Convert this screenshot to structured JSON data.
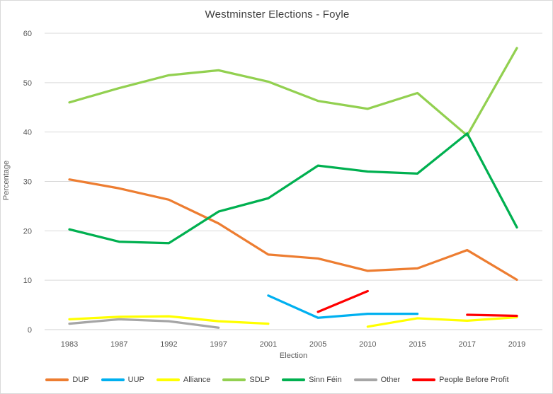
{
  "title": "Westminster Elections - Foyle",
  "axes": {
    "x_title": "Election",
    "y_title": "Percentage",
    "y_ticks": [
      0,
      10,
      20,
      30,
      40,
      50,
      60
    ]
  },
  "chart_data": {
    "type": "line",
    "title": "Westminster Elections - Foyle",
    "xlabel": "Election",
    "ylabel": "Percentage",
    "ylim": [
      0,
      60
    ],
    "y_tick_step": 10,
    "grid": true,
    "legend_position": "bottom",
    "categories": [
      "1983",
      "1987",
      "1992",
      "1997",
      "2001",
      "2005",
      "2010",
      "2015",
      "2017",
      "2019"
    ],
    "series": [
      {
        "name": "DUP",
        "color": "#ED7D31",
        "values": [
          30.4,
          28.6,
          26.3,
          21.5,
          15.2,
          14.4,
          11.9,
          12.4,
          16.1,
          10.1
        ]
      },
      {
        "name": "UUP",
        "color": "#00B0F0",
        "values": [
          null,
          null,
          null,
          null,
          6.9,
          2.4,
          3.2,
          3.2,
          null,
          null
        ]
      },
      {
        "name": "Alliance",
        "color": "#FFFF00",
        "values": [
          2.1,
          2.6,
          2.7,
          1.7,
          1.2,
          null,
          0.6,
          2.3,
          1.8,
          2.5
        ]
      },
      {
        "name": "SDLP",
        "color": "#92D050",
        "values": [
          46.0,
          48.9,
          51.5,
          52.5,
          50.2,
          46.3,
          44.7,
          47.9,
          39.3,
          57.0
        ]
      },
      {
        "name": "Sinn Féin",
        "color": "#00B050",
        "values": [
          20.3,
          17.8,
          17.5,
          23.9,
          26.6,
          33.2,
          32.0,
          31.6,
          39.7,
          20.7
        ]
      },
      {
        "name": "Other",
        "color": "#A6A6A6",
        "values": [
          1.2,
          2.1,
          1.7,
          0.4,
          null,
          null,
          null,
          null,
          null,
          null
        ]
      },
      {
        "name": "People Before Profit",
        "color": "#FF0000",
        "values": [
          null,
          null,
          null,
          null,
          null,
          3.6,
          7.8,
          null,
          3.0,
          2.8
        ]
      }
    ],
    "style": {
      "gridline_color": "#D9D9D9",
      "axis_line_color": "#D0D0D0",
      "title_color": "#404040",
      "tick_label_color": "#595959"
    }
  }
}
